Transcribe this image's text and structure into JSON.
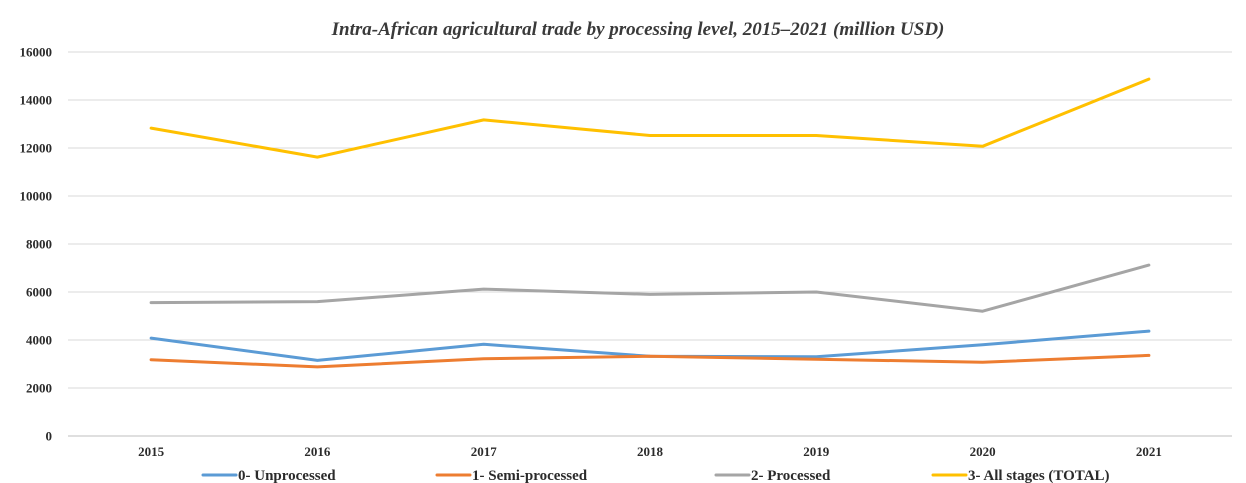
{
  "chart_data": {
    "type": "line",
    "title": "Intra-African agricultural trade by processing level, 2015–2021 (million USD)",
    "xlabel": "",
    "ylabel": "",
    "categories": [
      "2015",
      "2016",
      "2017",
      "2018",
      "2019",
      "2020",
      "2021"
    ],
    "ylim": [
      0,
      16000
    ],
    "yticks": [
      0,
      2000,
      4000,
      6000,
      8000,
      10000,
      12000,
      14000,
      16000
    ],
    "grid": true,
    "legend_position": "bottom",
    "series": [
      {
        "name": "0- Unprocessed",
        "color": "#5b9bd5",
        "values": [
          4080,
          3150,
          3820,
          3320,
          3300,
          3800,
          4370
        ]
      },
      {
        "name": "1- Semi-processed",
        "color": "#ed7d31",
        "values": [
          3180,
          2880,
          3220,
          3320,
          3200,
          3070,
          3360
        ]
      },
      {
        "name": "2- Processed",
        "color": "#a5a5a5",
        "values": [
          5560,
          5600,
          6120,
          5900,
          6000,
          5200,
          7120
        ]
      },
      {
        "name": "3- All stages (TOTAL)",
        "color": "#ffc000",
        "values": [
          12830,
          11620,
          13170,
          12520,
          12520,
          12070,
          14870
        ]
      }
    ]
  }
}
